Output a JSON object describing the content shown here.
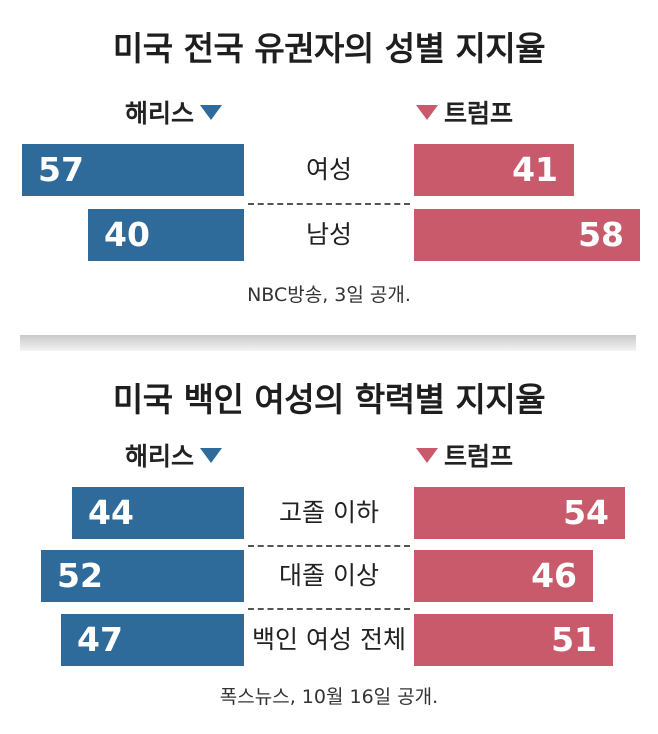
{
  "chart_data": [
    {
      "type": "bar",
      "title": "미국 전국 유권자의 성별 지지율",
      "series": [
        {
          "name": "해리스",
          "color": "#2f6b9a",
          "values": [
            57,
            40
          ]
        },
        {
          "name": "트럼프",
          "color": "#c85a6c",
          "values": [
            41,
            58
          ]
        }
      ],
      "categories": [
        "여성",
        "남성"
      ],
      "source": "NBC방송, 3일 공개.",
      "xlim": [
        0,
        60
      ]
    },
    {
      "type": "bar",
      "title": "미국 백인 여성의 학력별 지지율",
      "series": [
        {
          "name": "해리스",
          "color": "#2f6b9a",
          "values": [
            44,
            52,
            47
          ]
        },
        {
          "name": "트럼프",
          "color": "#c85a6c",
          "values": [
            54,
            46,
            51
          ]
        }
      ],
      "categories": [
        "고졸 이하",
        "대졸 이상",
        "백인 여성 전체"
      ],
      "source": "폭스뉴스, 10월 16일 공개.",
      "xlim": [
        0,
        60
      ]
    }
  ]
}
